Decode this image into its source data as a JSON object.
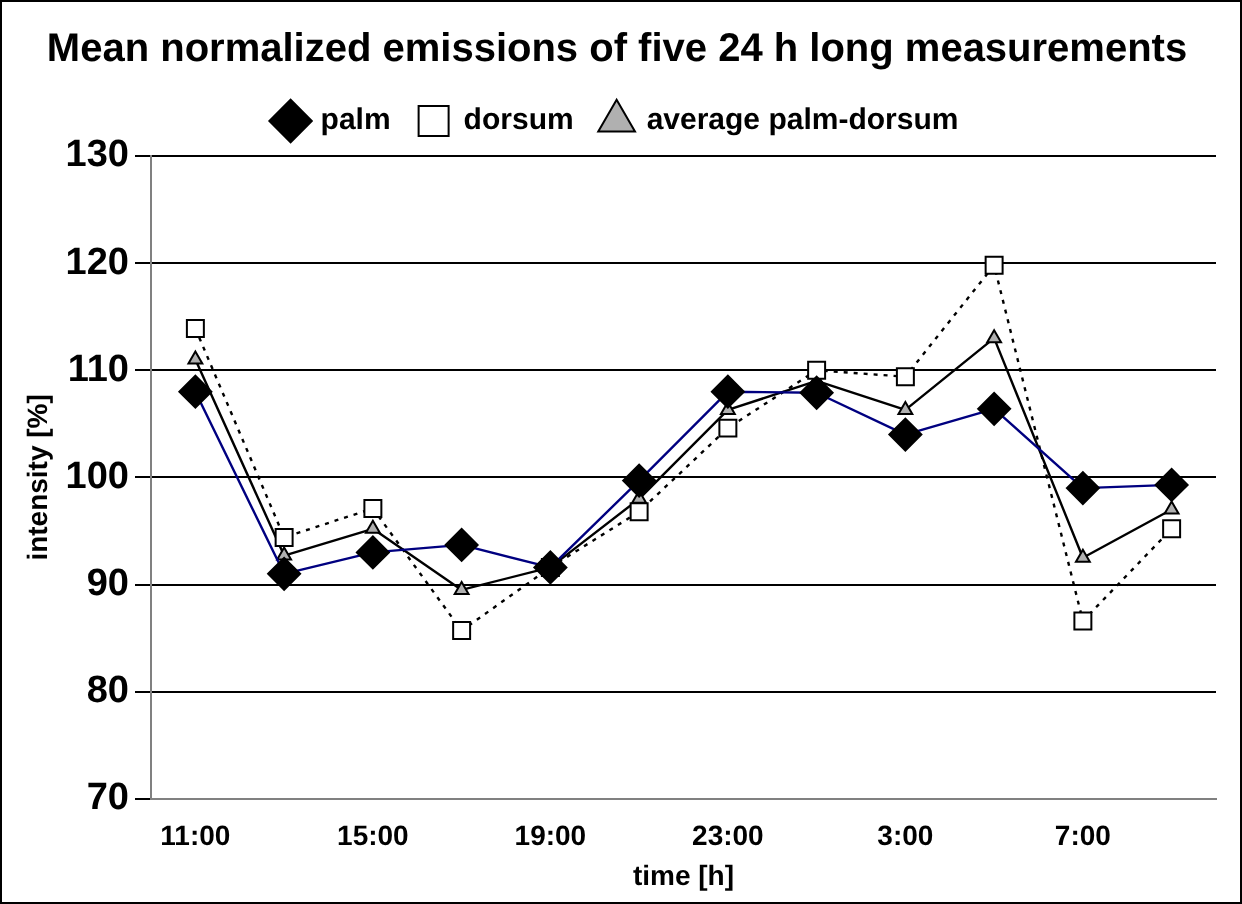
{
  "chart_data": {
    "type": "line",
    "title": "Mean normalized emissions of five 24 h long measurements",
    "xlabel": "time [h]",
    "ylabel": "intensity [%]",
    "categories": [
      "11:00",
      null,
      "15:00",
      null,
      "19:00",
      null,
      "23:00",
      null,
      "3:00",
      null,
      "7:00",
      null
    ],
    "series": [
      {
        "name": "palm",
        "color": "#000080",
        "marker": "diamond",
        "line_style": "solid",
        "values": [
          108.0,
          91.0,
          93.0,
          93.7,
          91.6,
          99.7,
          108.0,
          107.9,
          104.0,
          106.4,
          99.0,
          99.3
        ]
      },
      {
        "name": "dorsum",
        "color": "#000000",
        "marker": "square",
        "line_style": "dotted",
        "values": [
          113.9,
          94.4,
          97.1,
          85.7,
          91.6,
          96.8,
          104.6,
          110.0,
          109.4,
          119.8,
          86.6,
          95.2
        ]
      },
      {
        "name": "average palm-dorsum",
        "color": "#000000",
        "marker": "triangle",
        "line_style": "solid",
        "values": [
          111.0,
          92.7,
          95.2,
          89.5,
          91.6,
          98.0,
          106.3,
          109.0,
          106.3,
          113.0,
          92.5,
          97.0
        ]
      }
    ],
    "ylim": [
      70,
      130
    ],
    "yticks": [
      70,
      80,
      90,
      100,
      110,
      120,
      130
    ],
    "grid": "y",
    "legend": "top"
  }
}
